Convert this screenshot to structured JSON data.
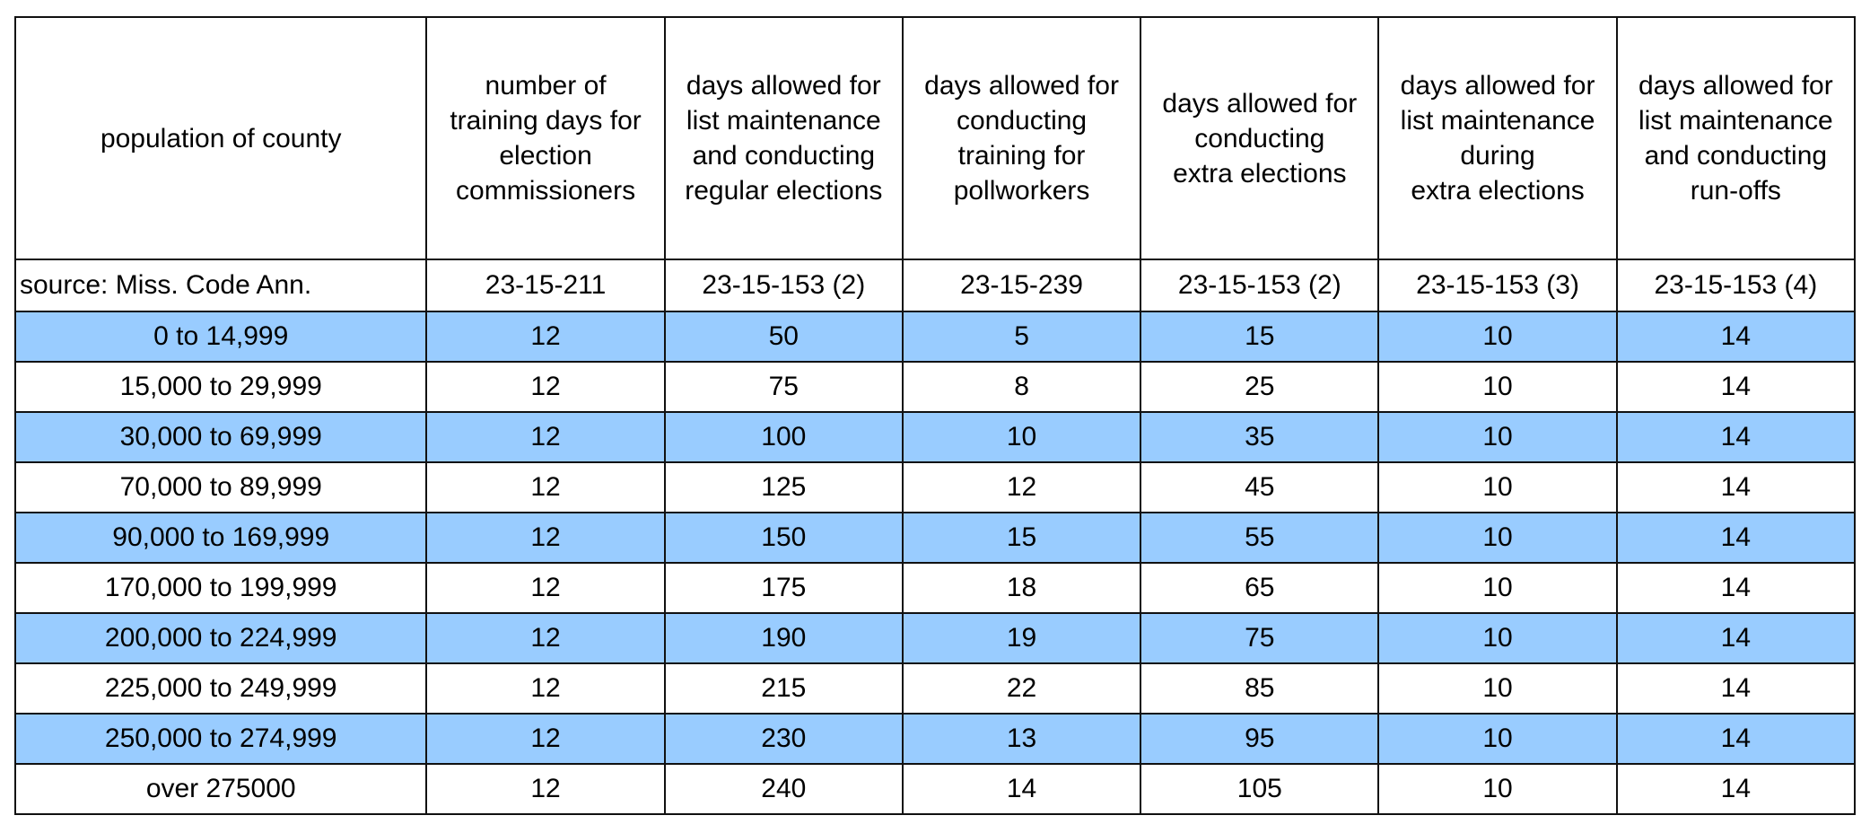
{
  "table": {
    "headers": [
      "population of county",
      "number of\ntraining days for\nelection\ncommissioners",
      "days allowed for\nlist maintenance\nand conducting\nregular elections",
      "days allowed for\nconducting\ntraining for\npollworkers",
      "days allowed for\nconducting\nextra elections",
      "days allowed for\nlist maintenance\nduring\nextra elections",
      "days allowed for\nlist maintenance\nand conducting\nrun-offs"
    ],
    "source_row": [
      "source: Miss. Code Ann.",
      "23-15-211",
      "23-15-153 (2)",
      "23-15-239",
      "23-15-153 (2)",
      "23-15-153 (3)",
      "23-15-153 (4)"
    ],
    "row_shading_color": "#99ccff",
    "rows": [
      [
        "0 to 14,999",
        "12",
        "50",
        "5",
        "15",
        "10",
        "14"
      ],
      [
        "15,000 to 29,999",
        "12",
        "75",
        "8",
        "25",
        "10",
        "14"
      ],
      [
        "30,000 to 69,999",
        "12",
        "100",
        "10",
        "35",
        "10",
        "14"
      ],
      [
        "70,000 to 89,999",
        "12",
        "125",
        "12",
        "45",
        "10",
        "14"
      ],
      [
        "90,000 to 169,999",
        "12",
        "150",
        "15",
        "55",
        "10",
        "14"
      ],
      [
        "170,000 to 199,999",
        "12",
        "175",
        "18",
        "65",
        "10",
        "14"
      ],
      [
        "200,000 to 224,999",
        "12",
        "190",
        "19",
        "75",
        "10",
        "14"
      ],
      [
        "225,000 to 249,999",
        "12",
        "215",
        "22",
        "85",
        "10",
        "14"
      ],
      [
        "250,000 to 274,999",
        "12",
        "230",
        "13",
        "95",
        "10",
        "14"
      ],
      [
        "over 275000",
        "12",
        "240",
        "14",
        "105",
        "10",
        "14"
      ]
    ]
  }
}
